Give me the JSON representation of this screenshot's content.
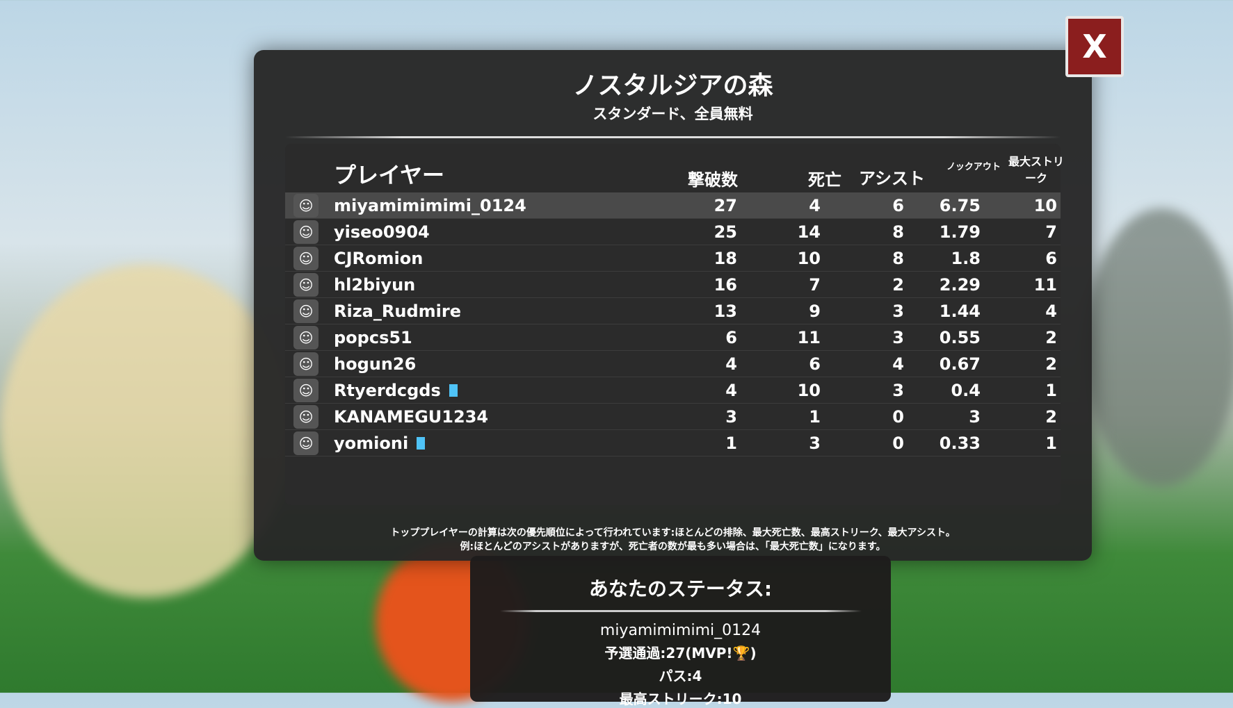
{
  "map_title": "ノスタルジアの森",
  "mode": "スタンダード、全員無料",
  "close_label": "X",
  "headers": {
    "player": "プレイヤー",
    "kills": "撃破数",
    "deaths": "死亡",
    "assists": "アシスト",
    "kd": "ノックアウト",
    "streak": "最大ストリーク"
  },
  "players": [
    {
      "name": "miyamimimimi_0124",
      "kills": "27",
      "deaths": "4",
      "assists": "6",
      "kd": "6.75",
      "streak": "10",
      "highlight": true,
      "badge": false
    },
    {
      "name": "yiseo0904",
      "kills": "25",
      "deaths": "14",
      "assists": "8",
      "kd": "1.79",
      "streak": "7",
      "badge": false
    },
    {
      "name": "CJRomion",
      "kills": "18",
      "deaths": "10",
      "assists": "8",
      "kd": "1.8",
      "streak": "6",
      "badge": false
    },
    {
      "name": "hl2biyun",
      "kills": "16",
      "deaths": "7",
      "assists": "2",
      "kd": "2.29",
      "streak": "11",
      "badge": false
    },
    {
      "name": "Riza_Rudmire",
      "kills": "13",
      "deaths": "9",
      "assists": "3",
      "kd": "1.44",
      "streak": "4",
      "badge": false
    },
    {
      "name": "popcs51",
      "kills": "6",
      "deaths": "11",
      "assists": "3",
      "kd": "0.55",
      "streak": "2",
      "badge": false
    },
    {
      "name": "hogun26",
      "kills": "4",
      "deaths": "6",
      "assists": "4",
      "kd": "0.67",
      "streak": "2",
      "badge": false
    },
    {
      "name": "Rtyerdcgds",
      "kills": "4",
      "deaths": "10",
      "assists": "3",
      "kd": "0.4",
      "streak": "1",
      "badge": true
    },
    {
      "name": "KANAMEGU1234",
      "kills": "3",
      "deaths": "1",
      "assists": "0",
      "kd": "3",
      "streak": "2",
      "badge": false
    },
    {
      "name": "yomioni",
      "kills": "1",
      "deaths": "3",
      "assists": "0",
      "kd": "0.33",
      "streak": "1",
      "badge": true
    }
  ],
  "footer": {
    "line1": "トッププレイヤーの計算は次の優先順位によって行われています:ほとんどの排除、最大死亡数、最高ストリーク、最大アシスト。",
    "line2": "例:ほとんどのアシストがありますが、死亡者の数が最も多い場合は、「最大死亡数」になります。"
  },
  "status": {
    "title": "あなたのステータス:",
    "name": "miyamimimimi_0124",
    "kills": "予選通過:27(MVP!🏆)",
    "passes": "パス:4",
    "streak": "最高ストリーク:10"
  },
  "colors": {
    "close": "#8b1e1e",
    "badge": "#4fc3f7",
    "panel": "#262626"
  }
}
